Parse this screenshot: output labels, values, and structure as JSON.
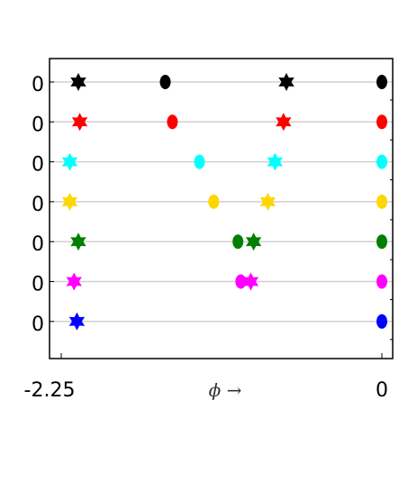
{
  "chart_data": {
    "type": "scatter",
    "title": "",
    "xlabel": "ϕ →",
    "ylabel": "",
    "xlim": [
      -2.25,
      0
    ],
    "x_tick_labels": [
      "-2.25",
      "0"
    ],
    "grid": "horizontal",
    "legend": "none",
    "rows": [
      {
        "y_label": "0",
        "color": "#000000",
        "stars": [
          -2.13,
          -0.67
        ],
        "circles": [
          -1.52,
          0
        ]
      },
      {
        "y_label": "0",
        "color": "#ff0000",
        "stars": [
          -2.12,
          -0.69
        ],
        "circles": [
          -1.47,
          0
        ]
      },
      {
        "y_label": "0",
        "color": "#00ffff",
        "stars": [
          -2.19,
          -0.75
        ],
        "circles": [
          -1.28,
          0
        ]
      },
      {
        "y_label": "0",
        "color": "#ffd700",
        "stars": [
          -2.19,
          -0.8
        ],
        "circles": [
          -1.18,
          0
        ]
      },
      {
        "y_label": "0",
        "color": "#008000",
        "stars": [
          -2.13,
          -0.9
        ],
        "circles": [
          -1.01,
          0
        ]
      },
      {
        "y_label": "0",
        "color": "#ff00ff",
        "stars": [
          -2.16,
          -0.92
        ],
        "circles": [
          -0.99,
          0
        ]
      },
      {
        "y_label": "0",
        "color": "#0000ff",
        "stars": [
          -2.14
        ],
        "circles": [
          0
        ]
      }
    ]
  }
}
